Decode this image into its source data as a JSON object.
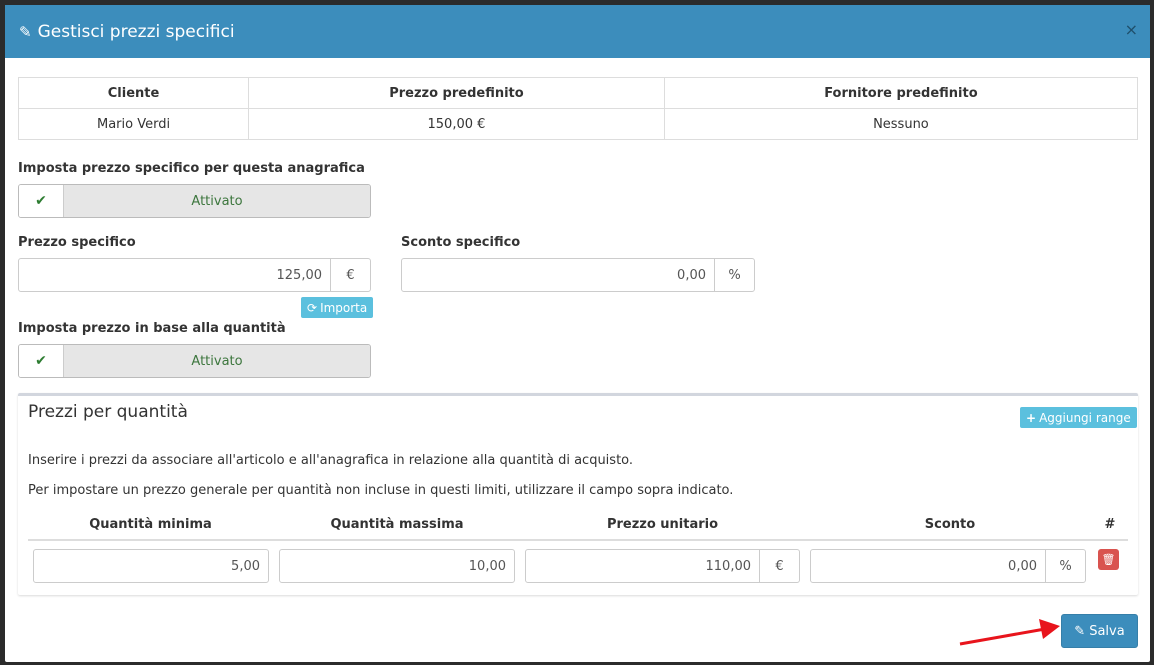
{
  "modal": {
    "title": "Gestisci prezzi specifici",
    "close": "×"
  },
  "info_table": {
    "headers": [
      "Cliente",
      "Prezzo predefinito",
      "Fornitore predefinito"
    ],
    "row": [
      "Mario Verdi",
      "150,00 €",
      "Nessuno"
    ]
  },
  "specific": {
    "label": "Imposta prezzo specifico per questa anagrafica",
    "state": "Attivato"
  },
  "prezzo": {
    "label": "Prezzo specifico",
    "value": "125,00",
    "unit": "€",
    "import_label": "Importa"
  },
  "sconto": {
    "label": "Sconto specifico",
    "value": "0,00",
    "unit": "%"
  },
  "quantity_toggle": {
    "label": "Imposta prezzo in base alla quantità",
    "state": "Attivato"
  },
  "box": {
    "title": "Prezzi per quantità",
    "add_label": "Aggiungi range",
    "text1": "Inserire i prezzi da associare all'articolo e all'anagrafica in relazione alla quantità di acquisto.",
    "text2": "Per impostare un prezzo generale per quantità non incluse in questi limiti, utilizzare il campo sopra indicato.",
    "headers": [
      "Quantità minima",
      "Quantità massima",
      "Prezzo unitario",
      "Sconto",
      "#"
    ],
    "rows": [
      {
        "min": "5,00",
        "max": "10,00",
        "price": "110,00",
        "price_unit": "€",
        "discount": "0,00",
        "discount_unit": "%"
      }
    ]
  },
  "footer": {
    "save_label": "Salva"
  },
  "colors": {
    "primary": "#3c8dbc",
    "info": "#5bc0de",
    "danger": "#d9534f",
    "success": "#3c763d",
    "annotation_arrow": "#e8141c"
  }
}
